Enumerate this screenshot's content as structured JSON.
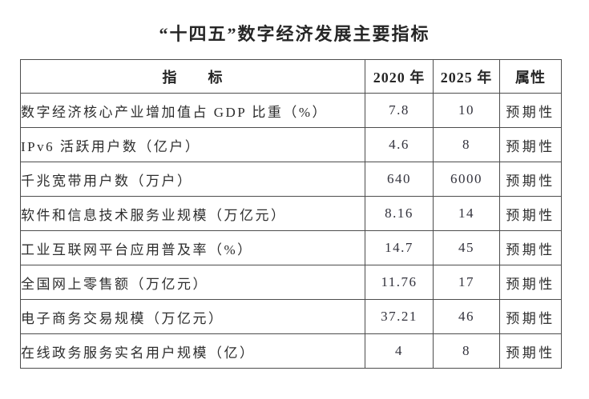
{
  "page": {
    "background_color": "#ffffff",
    "text_color": "#303030",
    "border_color": "#4d4d4d"
  },
  "title": "“十四五”数字经济发展主要指标",
  "table": {
    "headers": {
      "indicator": "指　　标",
      "y2020": "2020 年",
      "y2025": "2025 年",
      "attribute": "属性"
    },
    "rows": [
      {
        "indicator": "数字经济核心产业增加值占 GDP 比重（%）",
        "y2020": "7.8",
        "y2025": "10",
        "attribute": "预期性"
      },
      {
        "indicator": "IPv6 活跃用户数（亿户）",
        "y2020": "4.6",
        "y2025": "8",
        "attribute": "预期性"
      },
      {
        "indicator": "千兆宽带用户数（万户）",
        "y2020": "640",
        "y2025": "6000",
        "attribute": "预期性"
      },
      {
        "indicator": "软件和信息技术服务业规模（万亿元）",
        "y2020": "8.16",
        "y2025": "14",
        "attribute": "预期性"
      },
      {
        "indicator": "工业互联网平台应用普及率（%）",
        "y2020": "14.7",
        "y2025": "45",
        "attribute": "预期性"
      },
      {
        "indicator": "全国网上零售额（万亿元）",
        "y2020": "11.76",
        "y2025": "17",
        "attribute": "预期性"
      },
      {
        "indicator": "电子商务交易规模（万亿元）",
        "y2020": "37.21",
        "y2025": "46",
        "attribute": "预期性"
      },
      {
        "indicator": "在线政务服务实名用户规模（亿）",
        "y2020": "4",
        "y2025": "8",
        "attribute": "预期性"
      }
    ]
  }
}
